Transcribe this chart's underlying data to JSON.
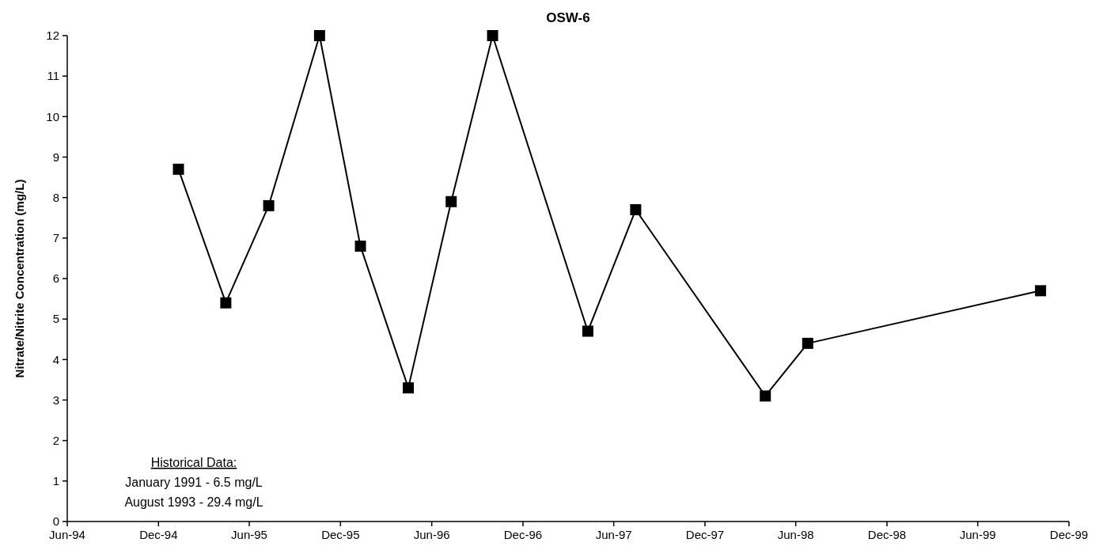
{
  "chart_data": {
    "type": "line",
    "title": "OSW-6",
    "ylabel": "Nitrate/Nitrite Concentration (mg/L)",
    "x": [
      "1995-01-10",
      "1995-04-15",
      "1995-07-10",
      "1995-10-20",
      "1996-01-10",
      "1996-04-15",
      "1996-07-10",
      "1996-10-01",
      "1997-04-10",
      "1997-07-15",
      "1998-04-01",
      "1998-06-25",
      "1999-10-05"
    ],
    "series": [
      {
        "color": "#000000",
        "values": [
          8.7,
          5.4,
          7.8,
          12.0,
          6.8,
          3.3,
          7.9,
          12.0,
          4.7,
          7.7,
          3.1,
          4.4,
          5.7
        ]
      }
    ],
    "xlim": [
      "1994-06-01",
      "1999-12-01"
    ],
    "xticks": [
      {
        "value": "1994-06-01",
        "label": "Jun-94"
      },
      {
        "value": "1994-12-01",
        "label": "Dec-94"
      },
      {
        "value": "1995-06-01",
        "label": "Jun-95"
      },
      {
        "value": "1995-12-01",
        "label": "Dec-95"
      },
      {
        "value": "1996-06-01",
        "label": "Jun-96"
      },
      {
        "value": "1996-12-01",
        "label": "Dec-96"
      },
      {
        "value": "1997-06-01",
        "label": "Jun-97"
      },
      {
        "value": "1997-12-01",
        "label": "Dec-97"
      },
      {
        "value": "1998-06-01",
        "label": "Jun-98"
      },
      {
        "value": "1998-12-01",
        "label": "Dec-98"
      },
      {
        "value": "1999-06-01",
        "label": "Jun-99"
      },
      {
        "value": "1999-12-01",
        "label": "Dec-99"
      }
    ],
    "ylim": [
      0,
      12
    ],
    "yticks": [
      0,
      1,
      2,
      3,
      4,
      5,
      6,
      7,
      8,
      9,
      10,
      11,
      12
    ],
    "annotations": [
      "Historical Data:",
      "January 1991 - 6.5 mg/L",
      "August 1993 - 29.4 mg/L"
    ],
    "marker": "square",
    "line_style": "solid",
    "grid": false
  }
}
